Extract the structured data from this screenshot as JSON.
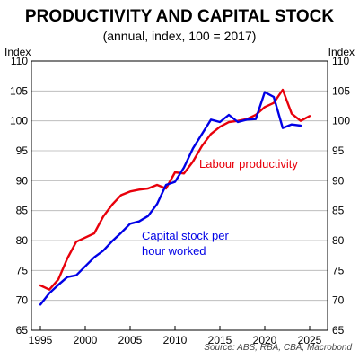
{
  "chart_data": {
    "type": "line",
    "title": "PRODUCTIVITY AND CAPITAL STOCK",
    "subtitle": "(annual, index, 100 = 2017)",
    "ylabel_left": "Index",
    "ylabel_right": "Index",
    "ylim": [
      65,
      110
    ],
    "yticks": [
      65,
      70,
      75,
      80,
      85,
      90,
      95,
      100,
      105,
      110
    ],
    "xlim": [
      1994,
      2027
    ],
    "xticks": [
      1995,
      2000,
      2005,
      2010,
      2015,
      2020,
      2025
    ],
    "grid": true,
    "source": "Source: ABS, RBA, CBA, Macrobond",
    "series": [
      {
        "name": "Labour productivity",
        "color": "#e8000b",
        "x": [
          1995,
          1996,
          1997,
          1998,
          1999,
          2000,
          2001,
          2002,
          2003,
          2004,
          2005,
          2006,
          2007,
          2008,
          2009,
          2010,
          2011,
          2012,
          2013,
          2014,
          2015,
          2016,
          2017,
          2018,
          2019,
          2020,
          2021,
          2022,
          2023,
          2024,
          2025
        ],
        "values": [
          72.5,
          71.8,
          73.5,
          77.0,
          79.8,
          80.5,
          81.2,
          84.0,
          86.0,
          87.6,
          88.2,
          88.5,
          88.7,
          89.3,
          88.7,
          91.4,
          91.2,
          93.2,
          95.8,
          97.8,
          99.0,
          99.8,
          100.0,
          100.3,
          101.0,
          102.3,
          103.0,
          105.2,
          101.2,
          100.0,
          100.8
        ]
      },
      {
        "name": "Capital stock per hour worked",
        "color": "#0000e6",
        "x": [
          1995,
          1996,
          1997,
          1998,
          1999,
          2000,
          2001,
          2002,
          2003,
          2004,
          2005,
          2006,
          2007,
          2008,
          2009,
          2010,
          2011,
          2012,
          2013,
          2014,
          2015,
          2016,
          2017,
          2018,
          2019,
          2020,
          2021,
          2022,
          2023,
          2024,
          2025
        ],
        "values": [
          69.3,
          71.2,
          72.6,
          73.9,
          74.2,
          75.7,
          77.2,
          78.3,
          79.9,
          81.3,
          82.8,
          83.2,
          84.1,
          86.1,
          89.3,
          89.8,
          92.2,
          95.4,
          97.8,
          100.2,
          99.8,
          101.0,
          99.8,
          100.2,
          100.3,
          104.8,
          104.0,
          98.8,
          99.4,
          99.2,
          null
        ]
      }
    ],
    "annotations": [
      {
        "text": "Labour productivity",
        "color": "#e8000b"
      },
      {
        "text": "Capital stock per",
        "color": "#0000e6"
      },
      {
        "text": "hour worked",
        "color": "#0000e6"
      }
    ]
  }
}
